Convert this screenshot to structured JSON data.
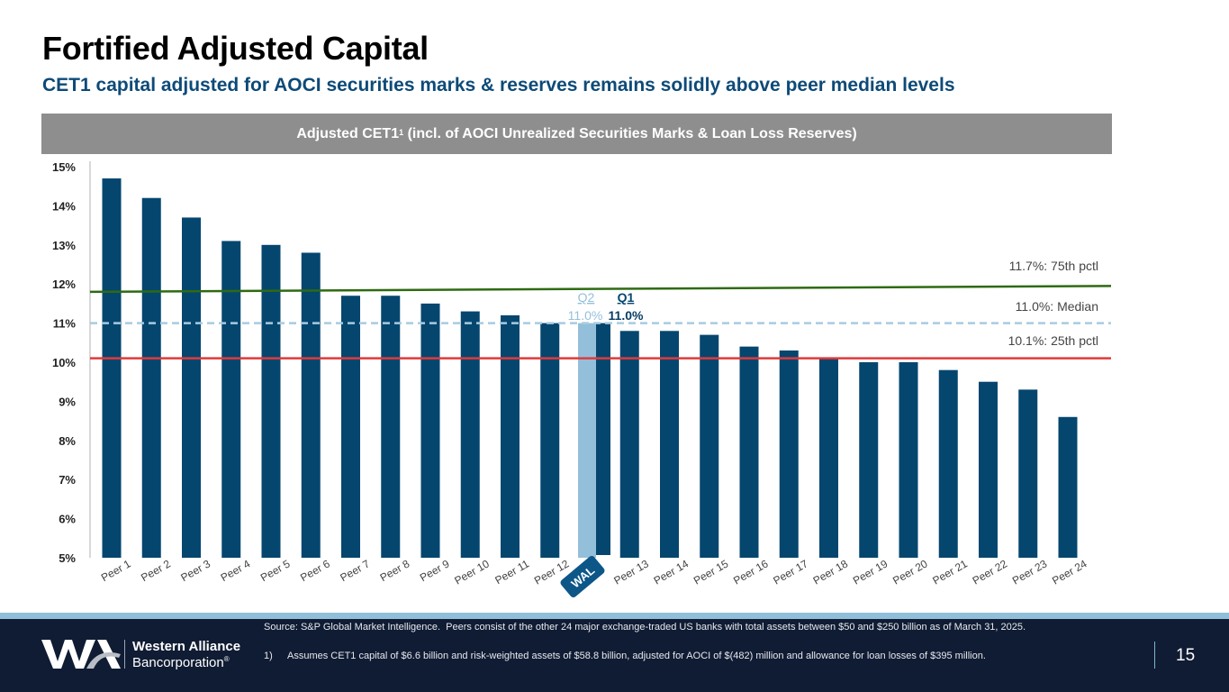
{
  "header": {
    "title": "Fortified Adjusted Capital",
    "subtitle": "CET1 capital adjusted for AOCI securities marks & reserves remains solidly above peer median levels"
  },
  "banner": {
    "text_main": "Adjusted CET1",
    "footnote_ref": "1",
    "text_rest": " (incl. of AOCI Unrealized Securities Marks & Loan Loss Reserves)"
  },
  "colors": {
    "peer_bar": "#05466f",
    "wal_q2_bar": "#94bfdb",
    "wal_q1_bar": "#05466f",
    "line_75th": "#2e6a12",
    "line_median": "#a8cbe0",
    "line_25th": "#e03a3a",
    "wal_badge": "#0d5688",
    "label_gray": "#404040"
  },
  "chart_data": {
    "type": "bar",
    "title": "Adjusted CET1 (incl. of AOCI Unrealized Securities Marks & Loan Loss Reserves)",
    "xlabel": "",
    "ylabel": "",
    "ylim": [
      5,
      15
    ],
    "yticks": [
      5,
      6,
      7,
      8,
      9,
      10,
      11,
      12,
      13,
      14,
      15
    ],
    "ytick_labels": [
      "5%",
      "6%",
      "7%",
      "8%",
      "9%",
      "10%",
      "11%",
      "12%",
      "13%",
      "14%",
      "15%"
    ],
    "grid": false,
    "categories": [
      "Peer 1",
      "Peer 2",
      "Peer 3",
      "Peer 4",
      "Peer 5",
      "Peer 6",
      "Peer 7",
      "Peer 8",
      "Peer 9",
      "Peer 10",
      "Peer 11",
      "Peer 12",
      "WAL",
      "Peer 13",
      "Peer 14",
      "Peer 15",
      "Peer 16",
      "Peer 17",
      "Peer 18",
      "Peer 19",
      "Peer 20",
      "Peer 21",
      "Peer 22",
      "Peer 23",
      "Peer 24"
    ],
    "values": [
      14.7,
      14.2,
      13.7,
      13.1,
      13.0,
      12.8,
      11.7,
      11.7,
      11.5,
      11.3,
      11.2,
      11.0,
      null,
      10.8,
      10.8,
      10.7,
      10.4,
      10.3,
      10.1,
      10.0,
      10.0,
      9.8,
      9.5,
      9.3,
      8.6
    ],
    "highlight": {
      "category": "WAL",
      "series": [
        {
          "name": "Q2",
          "value": 11.0,
          "label": "11.0%"
        },
        {
          "name": "Q1",
          "value": 11.0,
          "label": "11.0%"
        }
      ]
    },
    "reference_lines": [
      {
        "name": "75th pctl",
        "value": 11.7,
        "label": "11.7%: 75th pctl",
        "style": "solid",
        "start_value": 11.8,
        "end_value": 11.95
      },
      {
        "name": "Median",
        "value": 11.0,
        "label": "11.0%: Median",
        "style": "dashed",
        "start_value": 11.0,
        "end_value": 11.0
      },
      {
        "name": "25th pctl",
        "value": 10.1,
        "label": "10.1%: 25th pctl",
        "style": "solid",
        "start_value": 10.1,
        "end_value": 10.1
      }
    ]
  },
  "footer": {
    "logo_name_line1": "Western Alliance",
    "logo_name_line2": "Bancorporation",
    "logo_registered": "®",
    "source": "Source: S&P Global Market Intelligence.  Peers consist of the other 24 major exchange-traded US banks with total assets between $50 and $250 billion as of March 31, 2025.",
    "note_number": "1)",
    "note_text": "Assumes CET1 capital of $6.6 billion and risk-weighted assets of $58.8 billion, adjusted for AOCI of $(482) million and allowance for loan losses of $395 million.",
    "page_number": "15"
  }
}
